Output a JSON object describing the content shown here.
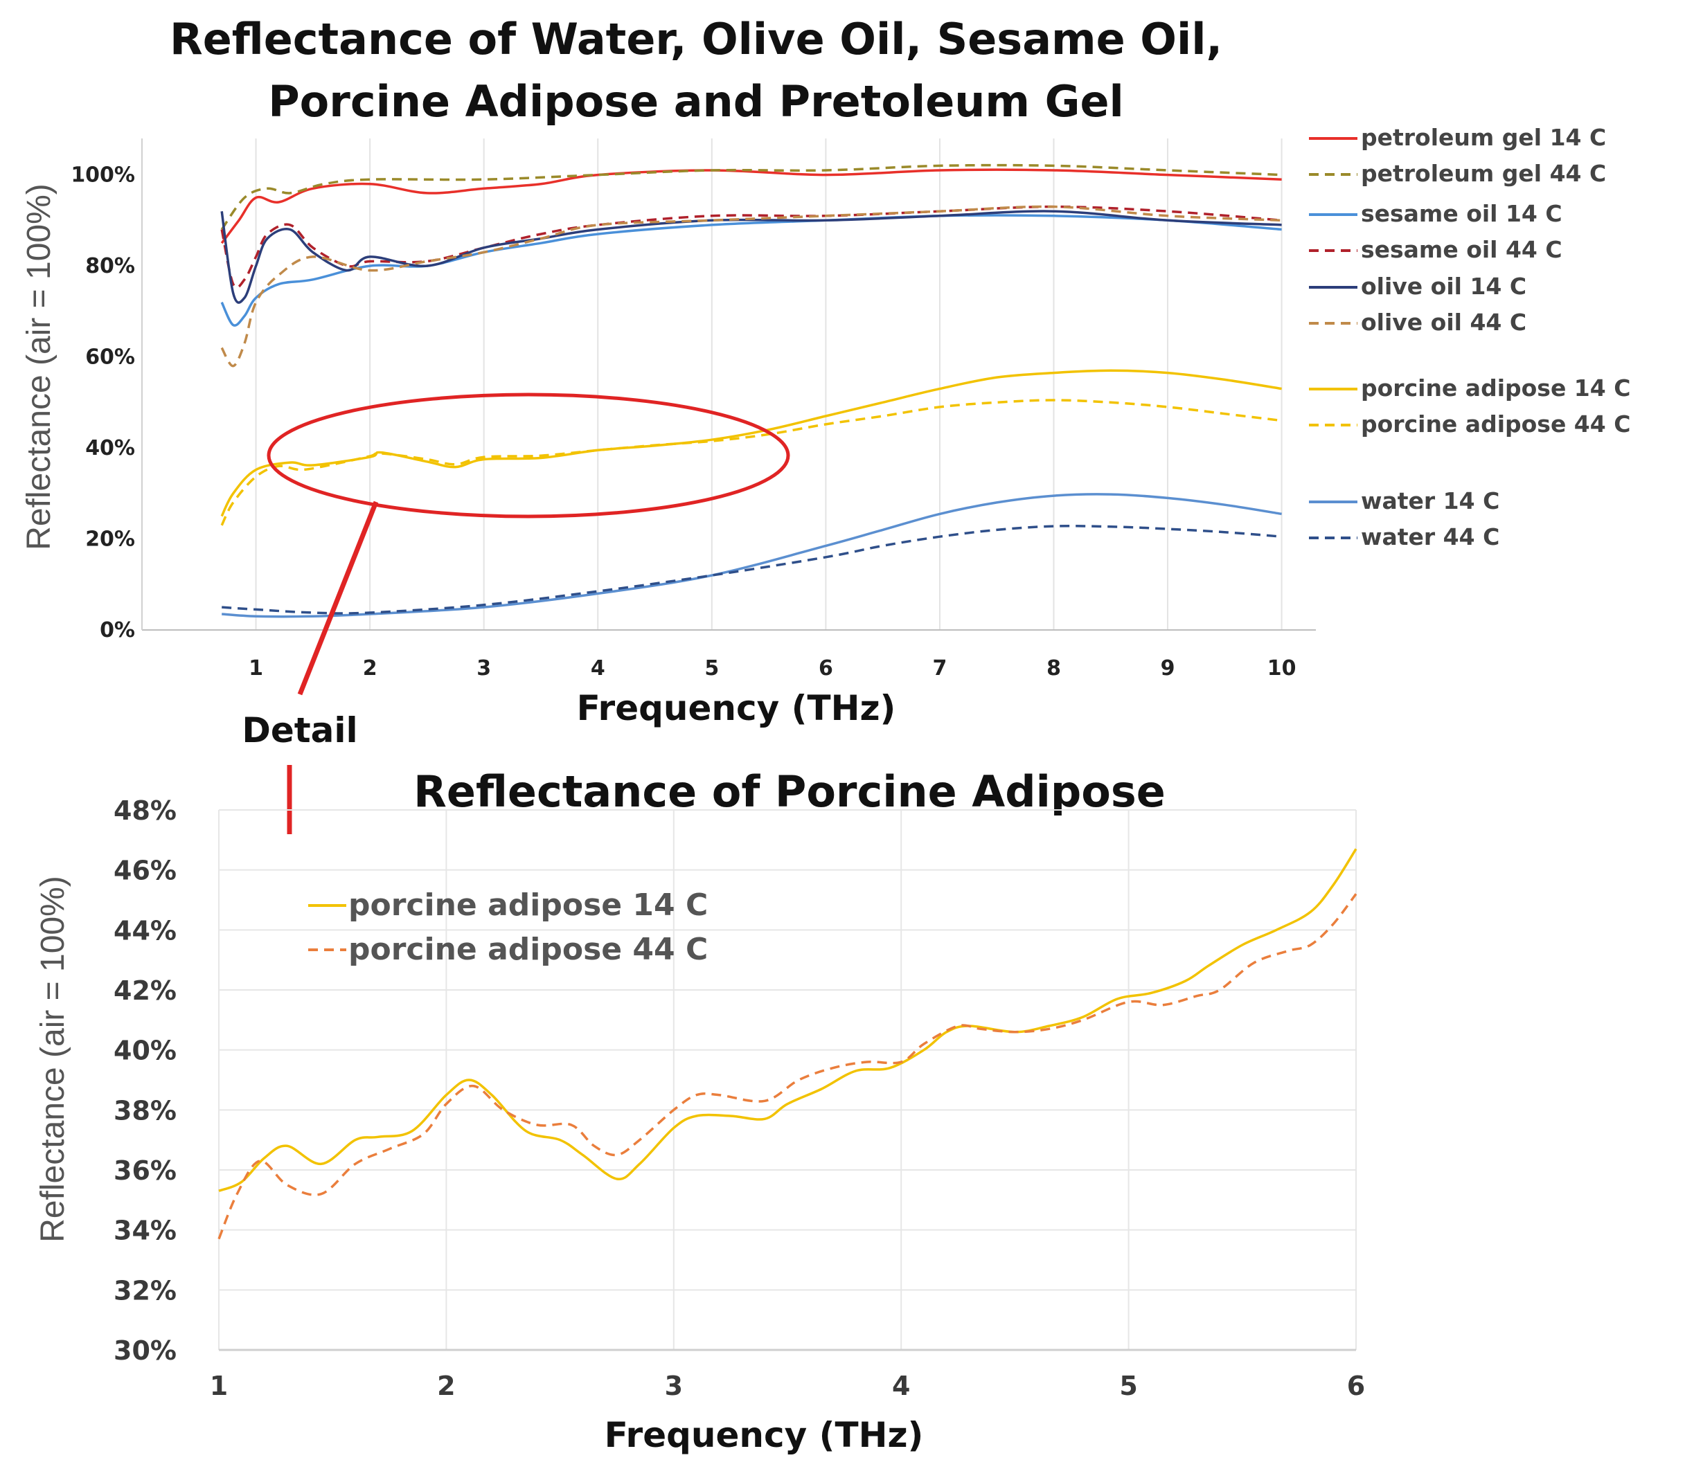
{
  "chart_data": [
    {
      "type": "line",
      "title_lines": [
        "Reflectance of Water, Olive Oil, Sesame Oil,",
        "Porcine Adipose and Pretoleum Gel"
      ],
      "xlabel": "Frequency (THz)",
      "ylabel": "Reflectance (air = 100%)",
      "xlim": [
        0.0,
        10.3
      ],
      "ylim": [
        0,
        1.08
      ],
      "x_ticks": [
        1,
        2,
        3,
        4,
        5,
        6,
        7,
        8,
        9,
        10
      ],
      "x_tick_labels": [
        "1",
        "2",
        "3",
        "4",
        "5",
        "6",
        "7",
        "8",
        "9",
        "10"
      ],
      "y_ticks": [
        0,
        0.2,
        0.4,
        0.6,
        0.8,
        1.0
      ],
      "y_tick_labels": [
        "0%",
        "20%",
        "40%",
        "60%",
        "80%",
        "100%"
      ],
      "grid": "vertical",
      "legend_position": "right",
      "series": [
        {
          "name": "petroleum gel 14 C",
          "color": "#e8302a",
          "dash": "solid",
          "x": [
            0.7,
            0.85,
            1.0,
            1.2,
            1.5,
            2.0,
            2.5,
            3.0,
            3.5,
            4.0,
            5.0,
            6.0,
            7.0,
            8.0,
            9.0,
            10.0
          ],
          "y": [
            0.85,
            0.9,
            0.95,
            0.94,
            0.97,
            0.98,
            0.96,
            0.97,
            0.98,
            1.0,
            1.01,
            1.0,
            1.01,
            1.01,
            1.0,
            0.99
          ]
        },
        {
          "name": "petroleum gel 44 C",
          "color": "#9a8a2a",
          "dash": "dashed",
          "x": [
            0.7,
            0.9,
            1.1,
            1.3,
            1.6,
            2.0,
            3.0,
            4.0,
            5.0,
            6.0,
            7.0,
            8.0,
            9.0,
            10.0
          ],
          "y": [
            0.88,
            0.95,
            0.97,
            0.96,
            0.98,
            0.99,
            0.99,
            1.0,
            1.01,
            1.01,
            1.02,
            1.02,
            1.01,
            1.0
          ]
        },
        {
          "name": "sesame oil 14 C",
          "color": "#4a90d9",
          "dash": "solid",
          "x": [
            0.7,
            0.8,
            0.9,
            1.0,
            1.2,
            1.5,
            2.0,
            2.5,
            3.0,
            3.5,
            4.0,
            5.0,
            6.0,
            7.0,
            8.0,
            9.0,
            10.0
          ],
          "y": [
            0.72,
            0.67,
            0.69,
            0.73,
            0.76,
            0.77,
            0.8,
            0.8,
            0.83,
            0.85,
            0.87,
            0.89,
            0.9,
            0.91,
            0.91,
            0.9,
            0.88
          ]
        },
        {
          "name": "sesame oil 44 C",
          "color": "#b0212b",
          "dash": "dashed",
          "x": [
            0.7,
            0.8,
            0.9,
            1.0,
            1.1,
            1.3,
            1.5,
            1.8,
            2.0,
            2.5,
            3.0,
            3.5,
            4.0,
            5.0,
            6.0,
            7.0,
            8.0,
            9.0,
            10.0
          ],
          "y": [
            0.88,
            0.76,
            0.77,
            0.82,
            0.87,
            0.89,
            0.84,
            0.8,
            0.81,
            0.81,
            0.84,
            0.87,
            0.89,
            0.91,
            0.91,
            0.92,
            0.93,
            0.92,
            0.9
          ]
        },
        {
          "name": "olive oil 14 C",
          "color": "#2c3e7a",
          "dash": "solid",
          "x": [
            0.7,
            0.8,
            0.9,
            1.0,
            1.1,
            1.3,
            1.5,
            1.8,
            2.0,
            2.5,
            3.0,
            3.5,
            4.0,
            5.0,
            6.0,
            7.0,
            8.0,
            9.0,
            10.0
          ],
          "y": [
            0.92,
            0.74,
            0.73,
            0.8,
            0.86,
            0.88,
            0.83,
            0.79,
            0.82,
            0.8,
            0.84,
            0.86,
            0.88,
            0.9,
            0.9,
            0.91,
            0.92,
            0.9,
            0.89
          ]
        },
        {
          "name": "olive oil 44 C",
          "color": "#c08a4a",
          "dash": "dashed",
          "x": [
            0.7,
            0.8,
            0.9,
            1.0,
            1.2,
            1.5,
            2.0,
            2.5,
            3.0,
            3.5,
            4.0,
            5.0,
            6.0,
            7.0,
            8.0,
            9.0,
            10.0
          ],
          "y": [
            0.62,
            0.58,
            0.63,
            0.72,
            0.78,
            0.82,
            0.79,
            0.81,
            0.83,
            0.86,
            0.89,
            0.9,
            0.91,
            0.92,
            0.93,
            0.91,
            0.9
          ]
        },
        {
          "name": "porcine adipose 14 C",
          "color": "#f2c200",
          "dash": "solid",
          "x": [
            0.7,
            0.8,
            1.0,
            1.3,
            1.5,
            2.0,
            2.1,
            2.5,
            2.75,
            3.0,
            3.5,
            4.0,
            4.5,
            5.0,
            5.5,
            6.0,
            6.5,
            7.0,
            7.5,
            8.0,
            8.5,
            9.0,
            9.5,
            10.0
          ],
          "y": [
            0.25,
            0.3,
            0.352,
            0.368,
            0.362,
            0.38,
            0.39,
            0.37,
            0.358,
            0.375,
            0.378,
            0.395,
            0.405,
            0.418,
            0.44,
            0.47,
            0.5,
            0.53,
            0.555,
            0.565,
            0.57,
            0.565,
            0.55,
            0.53
          ]
        },
        {
          "name": "porcine adipose 44 C",
          "color": "#f2c200",
          "dash": "dashed",
          "x": [
            0.7,
            0.8,
            1.0,
            1.2,
            1.4,
            1.7,
            2.0,
            2.1,
            2.5,
            2.75,
            3.0,
            3.5,
            4.0,
            4.5,
            5.0,
            5.5,
            6.0,
            6.5,
            7.0,
            7.5,
            8.0,
            8.5,
            9.0,
            9.5,
            10.0
          ],
          "y": [
            0.23,
            0.28,
            0.337,
            0.36,
            0.352,
            0.365,
            0.382,
            0.388,
            0.375,
            0.364,
            0.38,
            0.383,
            0.395,
            0.406,
            0.415,
            0.43,
            0.452,
            0.47,
            0.49,
            0.5,
            0.505,
            0.5,
            0.49,
            0.475,
            0.46
          ]
        },
        {
          "name": "water 14 C",
          "color": "#5b8fd0",
          "dash": "solid",
          "x": [
            0.7,
            1.0,
            1.5,
            2.0,
            3.0,
            4.0,
            5.0,
            6.0,
            6.5,
            7.0,
            7.5,
            8.0,
            8.5,
            9.0,
            9.5,
            10.0
          ],
          "y": [
            0.035,
            0.03,
            0.03,
            0.035,
            0.05,
            0.08,
            0.12,
            0.185,
            0.22,
            0.255,
            0.28,
            0.295,
            0.298,
            0.29,
            0.275,
            0.255
          ]
        },
        {
          "name": "water 44 C",
          "color": "#2f4f8a",
          "dash": "dashed",
          "x": [
            0.7,
            1.0,
            1.5,
            2.0,
            3.0,
            4.0,
            5.0,
            6.0,
            6.5,
            7.0,
            7.5,
            8.0,
            8.5,
            9.0,
            9.5,
            10.0
          ],
          "y": [
            0.05,
            0.045,
            0.038,
            0.038,
            0.055,
            0.085,
            0.12,
            0.16,
            0.185,
            0.205,
            0.22,
            0.228,
            0.227,
            0.222,
            0.215,
            0.205
          ]
        }
      ]
    },
    {
      "type": "line",
      "title": "Reflectance of Porcine Adipose",
      "xlabel": "Frequency (THz)",
      "ylabel": "Reflectance (air = 100%)",
      "xlim": [
        1,
        6
      ],
      "ylim": [
        0.3,
        0.48
      ],
      "x_ticks": [
        1,
        2,
        3,
        4,
        5,
        6
      ],
      "x_tick_labels": [
        "1",
        "2",
        "3",
        "4",
        "5",
        "6"
      ],
      "y_ticks": [
        0.3,
        0.32,
        0.34,
        0.36,
        0.38,
        0.4,
        0.42,
        0.44,
        0.46,
        0.48
      ],
      "y_tick_labels": [
        "30%",
        "32%",
        "34%",
        "36%",
        "38%",
        "40%",
        "42%",
        "44%",
        "46%",
        "48%"
      ],
      "grid": "both",
      "legend_position": "top-left",
      "series": [
        {
          "name": "porcine adipose 14 C",
          "color": "#f2c200",
          "dash": "solid",
          "x": [
            1.0,
            1.1,
            1.2,
            1.3,
            1.45,
            1.6,
            1.7,
            1.85,
            2.0,
            2.1,
            2.2,
            2.35,
            2.5,
            2.6,
            2.75,
            2.85,
            3.0,
            3.1,
            3.25,
            3.4,
            3.5,
            3.65,
            3.8,
            3.95,
            4.1,
            4.2,
            4.3,
            4.5,
            4.65,
            4.8,
            4.95,
            5.1,
            5.25,
            5.35,
            5.5,
            5.65,
            5.8,
            5.9,
            6.0
          ],
          "y": [
            0.353,
            0.356,
            0.364,
            0.368,
            0.362,
            0.37,
            0.371,
            0.373,
            0.385,
            0.39,
            0.385,
            0.373,
            0.37,
            0.365,
            0.357,
            0.362,
            0.374,
            0.378,
            0.378,
            0.377,
            0.382,
            0.387,
            0.393,
            0.394,
            0.4,
            0.406,
            0.408,
            0.406,
            0.408,
            0.411,
            0.417,
            0.419,
            0.423,
            0.428,
            0.435,
            0.44,
            0.446,
            0.455,
            0.467
          ]
        },
        {
          "name": "porcine adipose 44 C",
          "color": "#ea7e3c",
          "dash": "dashed",
          "x": [
            1.0,
            1.08,
            1.18,
            1.3,
            1.45,
            1.6,
            1.75,
            1.9,
            2.0,
            2.12,
            2.25,
            2.4,
            2.55,
            2.65,
            2.75,
            2.85,
            3.0,
            3.1,
            3.2,
            3.4,
            3.55,
            3.7,
            3.85,
            4.0,
            4.1,
            4.25,
            4.35,
            4.5,
            4.65,
            4.8,
            5.0,
            5.15,
            5.3,
            5.4,
            5.55,
            5.7,
            5.8,
            5.9,
            6.0
          ],
          "y": [
            0.337,
            0.352,
            0.363,
            0.355,
            0.352,
            0.362,
            0.367,
            0.372,
            0.382,
            0.388,
            0.38,
            0.375,
            0.375,
            0.368,
            0.365,
            0.37,
            0.38,
            0.385,
            0.385,
            0.383,
            0.39,
            0.394,
            0.396,
            0.396,
            0.402,
            0.408,
            0.407,
            0.406,
            0.407,
            0.41,
            0.416,
            0.415,
            0.418,
            0.42,
            0.429,
            0.433,
            0.435,
            0.442,
            0.452
          ]
        }
      ]
    }
  ],
  "annotation": {
    "detail_label": "Detail",
    "circle_color": "#e02424"
  }
}
